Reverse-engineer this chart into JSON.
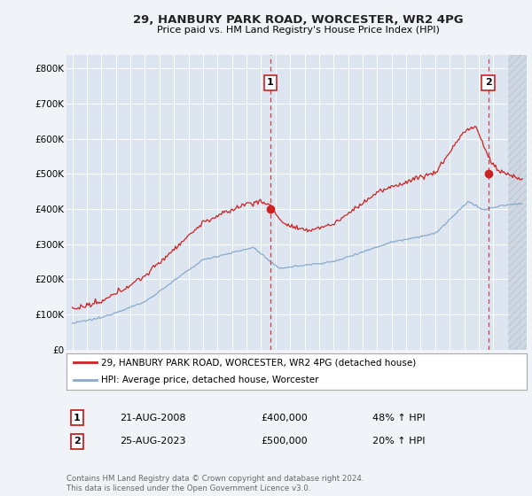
{
  "title": "29, HANBURY PARK ROAD, WORCESTER, WR2 4PG",
  "subtitle": "Price paid vs. HM Land Registry's House Price Index (HPI)",
  "red_label": "29, HANBURY PARK ROAD, WORCESTER, WR2 4PG (detached house)",
  "blue_label": "HPI: Average price, detached house, Worcester",
  "sale1_date": "21-AUG-2008",
  "sale1_price": "£400,000",
  "sale1_hpi": "48% ↑ HPI",
  "sale2_date": "25-AUG-2023",
  "sale2_price": "£500,000",
  "sale2_hpi": "20% ↑ HPI",
  "footer": "Contains HM Land Registry data © Crown copyright and database right 2024.\nThis data is licensed under the Open Government Licence v3.0.",
  "ylim": [
    0,
    840000
  ],
  "xlim_start": 1994.6,
  "xlim_end": 2026.3,
  "sale1_x": 2008.646,
  "sale2_x": 2023.646,
  "red_color": "#cc2222",
  "blue_color": "#88aacc",
  "bg_plot": "#dde6f0",
  "bg_fig": "#f0f4f8",
  "grid_color": "#ffffff",
  "dashed_color": "#cc2222",
  "hatch_color": "#c8d0dc"
}
